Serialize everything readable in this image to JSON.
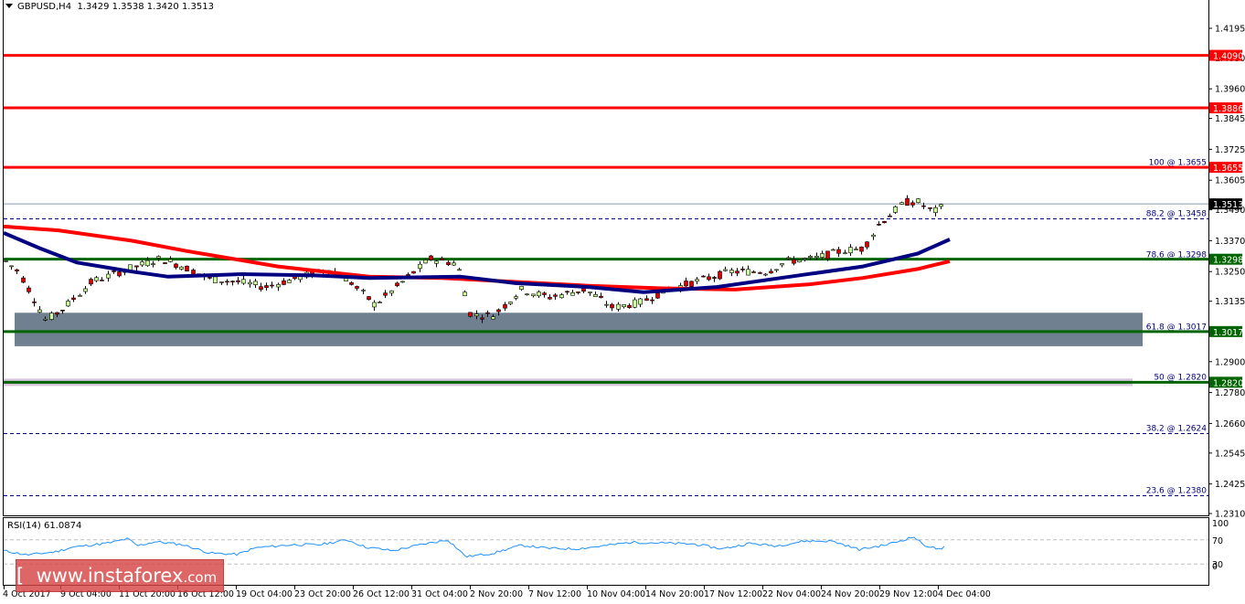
{
  "header": {
    "symbol": "GBPUSD,H4",
    "ohlc": "1.3429 1.3538 1.3420 1.3513"
  },
  "rsi": {
    "label": "RSI(14) 61.0874",
    "axis": [
      "100",
      "70",
      "30",
      "0"
    ]
  },
  "watermark": {
    "bracket_open": "[",
    "text": "www.instaforex",
    "suffix": ".com",
    "bracket_close": "]"
  },
  "colors": {
    "resistance": "#ff0000",
    "support": "#006400",
    "ma_fast": "#000080",
    "ma_slow": "#ff0000",
    "bull_candle": "#ccff99",
    "bear_candle": "#e00000",
    "zone": "#708090",
    "rsi_line": "#1e90ff",
    "fib_label": "#000080"
  },
  "chart_data": {
    "type": "candlestick",
    "title": "GBPUSD,H4 1.3429 1.3538 1.3420 1.3513",
    "xlabel": "",
    "ylabel": "",
    "ylim": [
      1.228,
      1.425
    ],
    "x_ticks": [
      "4 Oct 2017",
      "9 Oct 04:00",
      "11 Oct 20:00",
      "16 Oct 12:00",
      "19 Oct 04:00",
      "23 Oct 20:00",
      "26 Oct 12:00",
      "31 Oct 04:00",
      "2 Nov 20:00",
      "7 Nov 12:00",
      "10 Nov 04:00",
      "14 Nov 20:00",
      "17 Nov 12:00",
      "22 Nov 04:00",
      "24 Nov 20:00",
      "29 Nov 12:00",
      "4 Dec 04:00"
    ],
    "y_ticks": [
      "1.4195",
      "1.4080",
      "1.3960",
      "1.3845",
      "1.3725",
      "1.3605",
      "1.3490",
      "1.3370",
      "1.3250",
      "1.3135",
      "1.2900",
      "1.2780",
      "1.2660",
      "1.2545",
      "1.2425",
      "1.2310"
    ],
    "current_price": "1.3513",
    "horizontal_levels": [
      {
        "price": "1.4090",
        "type": "resistance",
        "color": "red"
      },
      {
        "price": "1.3886",
        "type": "resistance",
        "color": "red"
      },
      {
        "price": "1.3655",
        "type": "resistance",
        "color": "red"
      },
      {
        "price": "1.3298",
        "type": "support",
        "color": "green"
      },
      {
        "price": "1.3017",
        "type": "support",
        "color": "green"
      },
      {
        "price": "1.2820",
        "type": "support",
        "color": "green"
      }
    ],
    "fibonacci": [
      {
        "label": "100 @ 1.3655",
        "price": 1.3655
      },
      {
        "label": "88.2 @ 1.3458",
        "price": 1.3458
      },
      {
        "label": "78.6 @ 1.3298",
        "price": 1.3298
      },
      {
        "label": "61.8 @ 1.3017",
        "price": 1.3017
      },
      {
        "label": "50 @ 1.2820",
        "price": 1.282
      },
      {
        "label": "38.2 @ 1.2624",
        "price": 1.2624
      },
      {
        "label": "23.6 @ 1.2380",
        "price": 1.238
      }
    ],
    "zone": {
      "from": 1.296,
      "to": 1.309
    },
    "series": [
      {
        "name": "Fast MA (blue)",
        "points": [
          [
            0,
            1.34
          ],
          [
            40,
            1.334
          ],
          [
            80,
            1.3285
          ],
          [
            140,
            1.325
          ],
          [
            180,
            1.323
          ],
          [
            260,
            1.324
          ],
          [
            340,
            1.3235
          ],
          [
            400,
            1.3225
          ],
          [
            500,
            1.323
          ],
          [
            560,
            1.3205
          ],
          [
            640,
            1.319
          ],
          [
            700,
            1.317
          ],
          [
            780,
            1.319
          ],
          [
            860,
            1.323
          ],
          [
            940,
            1.327
          ],
          [
            1000,
            1.332
          ],
          [
            1035,
            1.3375
          ]
        ]
      },
      {
        "name": "Slow MA (red)",
        "points": [
          [
            0,
            1.3425
          ],
          [
            60,
            1.341
          ],
          [
            140,
            1.337
          ],
          [
            200,
            1.333
          ],
          [
            300,
            1.327
          ],
          [
            400,
            1.323
          ],
          [
            480,
            1.3225
          ],
          [
            560,
            1.321
          ],
          [
            640,
            1.3195
          ],
          [
            720,
            1.3185
          ],
          [
            800,
            1.318
          ],
          [
            880,
            1.32
          ],
          [
            940,
            1.3225
          ],
          [
            1000,
            1.326
          ],
          [
            1035,
            1.329
          ]
        ]
      },
      {
        "name": "RSI(14)",
        "values_latest": 61.0874,
        "levels": [
          70,
          30
        ]
      }
    ]
  }
}
